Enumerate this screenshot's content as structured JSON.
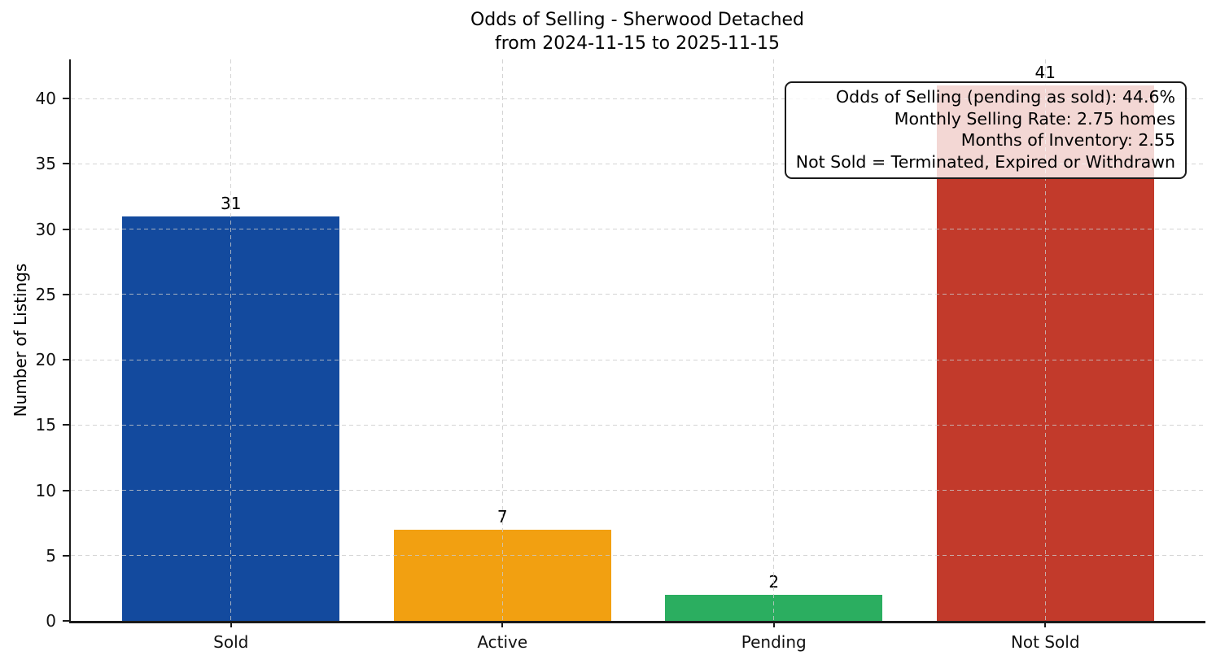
{
  "figure": {
    "title": "Odds of Selling - Sherwood Detached",
    "subtitle": "from 2024-11-15 to 2025-11-15"
  },
  "chart_data": {
    "type": "bar",
    "title": "Odds of Selling - Sherwood Detached",
    "subtitle": "from 2024-11-15 to 2025-11-15",
    "categories": [
      "Sold",
      "Active",
      "Pending",
      "Not Sold"
    ],
    "values": [
      31,
      7,
      2,
      41
    ],
    "bar_labels": [
      "31",
      "7",
      "2",
      "41"
    ],
    "bar_colors": [
      "#134A9E",
      "#F2A011",
      "#2BAE60",
      "#C23A2B"
    ],
    "xlabel": "",
    "ylabel": "Number of Listings",
    "ylim": [
      0,
      43
    ],
    "yticks": [
      0,
      5,
      10,
      15,
      20,
      25,
      30,
      35,
      40
    ],
    "grid": "dashed, horizontal and vertical, drawn over bars",
    "legend": "none",
    "annotation_lines": [
      "Odds of Selling (pending as sold): 44.6%",
      "Monthly Selling Rate: 2.75 homes",
      "Months of Inventory: 2.55",
      "Not Sold = Terminated, Expired or Withdrawn"
    ]
  }
}
